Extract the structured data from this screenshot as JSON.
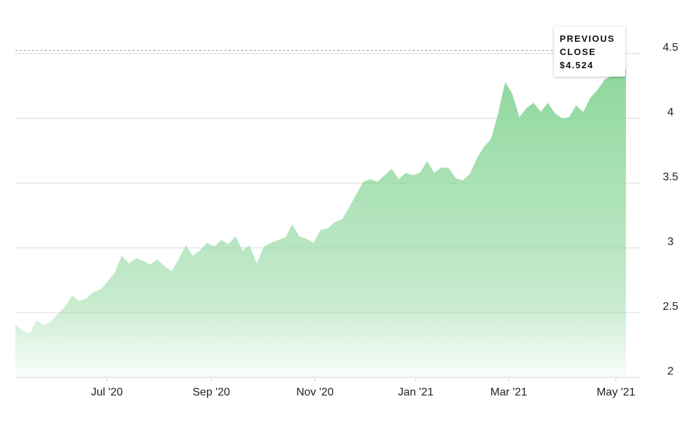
{
  "chart_data": {
    "type": "area",
    "color": "#8ed79c",
    "categories": [
      null,
      null,
      null,
      null,
      null,
      null,
      null,
      null,
      null,
      null,
      null,
      null,
      null,
      null,
      null,
      null,
      null,
      null,
      null,
      null,
      null,
      null,
      null,
      null,
      null,
      null,
      null,
      null,
      null,
      null,
      null,
      null,
      null,
      null,
      null,
      null,
      null,
      null,
      null,
      null,
      null,
      null,
      null,
      null,
      null,
      null,
      null,
      null,
      null,
      null,
      null,
      null,
      null,
      null,
      null,
      null,
      null,
      null,
      null,
      null,
      null,
      null,
      null,
      null,
      null,
      null,
      null,
      null,
      null,
      null,
      null,
      null,
      null,
      null,
      null,
      null,
      null,
      null,
      null,
      null,
      null,
      null,
      null,
      null,
      null,
      null,
      null
    ],
    "values": [
      2.41,
      2.36,
      2.34,
      2.44,
      2.4,
      2.43,
      2.49,
      2.55,
      2.63,
      2.59,
      2.61,
      2.66,
      2.68,
      2.74,
      2.81,
      2.94,
      2.88,
      2.92,
      2.9,
      2.87,
      2.91,
      2.86,
      2.82,
      2.91,
      3.02,
      2.94,
      2.98,
      3.04,
      3.01,
      3.06,
      3.03,
      3.09,
      2.98,
      3.02,
      2.88,
      3.01,
      3.04,
      3.06,
      3.08,
      3.18,
      3.09,
      3.07,
      3.04,
      3.14,
      3.15,
      3.2,
      3.22,
      3.31,
      3.41,
      3.51,
      3.53,
      3.51,
      3.56,
      3.61,
      3.53,
      3.58,
      3.56,
      3.58,
      3.67,
      3.58,
      3.62,
      3.62,
      3.54,
      3.52,
      3.57,
      3.69,
      3.78,
      3.84,
      4.04,
      4.28,
      4.19,
      4.01,
      4.08,
      4.12,
      4.05,
      4.12,
      4.04,
      4.0,
      4.01,
      4.1,
      4.05,
      4.16,
      4.22,
      4.3,
      4.33,
      4.38,
      4.38
    ],
    "xticks": [
      {
        "value": 12.9,
        "label": "Jul '20"
      },
      {
        "value": 27.6,
        "label": "Sep '20"
      },
      {
        "value": 42.2,
        "label": "Nov '20"
      },
      {
        "value": 56.4,
        "label": "Jan '21"
      },
      {
        "value": 69.5,
        "label": "Mar '21"
      },
      {
        "value": 84.6,
        "label": "May '21"
      }
    ],
    "ylim": [
      2,
      4.7
    ],
    "yticks": [
      2,
      2.5,
      3,
      3.5,
      4,
      4.5
    ],
    "grid": true,
    "previous_close": {
      "label": "PREVIOUS CLOSE",
      "value": 4.524,
      "value_label": "$4.524"
    }
  }
}
